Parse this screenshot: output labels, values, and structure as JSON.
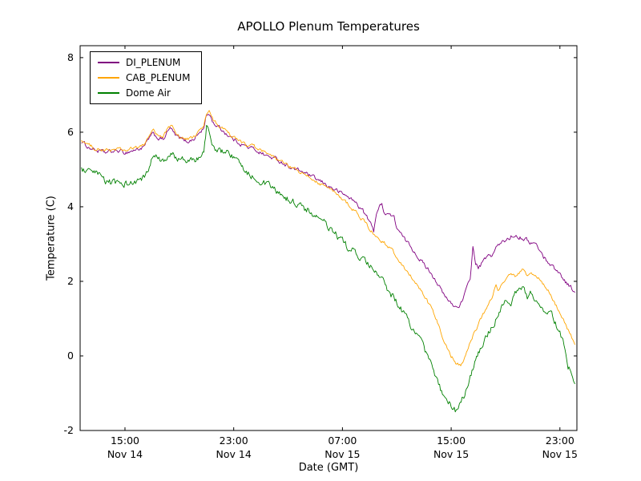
{
  "chart_data": {
    "type": "line",
    "title": "APOLLO Plenum Temperatures",
    "xlabel": "Date (GMT)",
    "ylabel": "Temperature (C)",
    "x_unit": "hours since Nov 14 00:00 GMT",
    "xlim": [
      11.7,
      48.25
    ],
    "ylim": [
      -2,
      8.32
    ],
    "grid": false,
    "legend_position": "upper left",
    "x_ticks": [
      {
        "value": 15,
        "time": "15:00",
        "date": "Nov 14"
      },
      {
        "value": 23,
        "time": "23:00",
        "date": "Nov 14"
      },
      {
        "value": 31,
        "time": "07:00",
        "date": "Nov 15"
      },
      {
        "value": 39,
        "time": "15:00",
        "date": "Nov 15"
      },
      {
        "value": 47,
        "time": "23:00",
        "date": "Nov 15"
      }
    ],
    "y_ticks": [
      {
        "value": -2,
        "label": "-2"
      },
      {
        "value": 0,
        "label": "0"
      },
      {
        "value": 2,
        "label": "2"
      },
      {
        "value": 4,
        "label": "4"
      },
      {
        "value": 6,
        "label": "6"
      },
      {
        "value": 8,
        "label": "8"
      }
    ],
    "series": [
      {
        "name": "DI_PLENUM",
        "color": "#800080",
        "noise": 0.035,
        "points": [
          [
            11.8,
            5.75
          ],
          [
            12.3,
            5.6
          ],
          [
            13,
            5.5
          ],
          [
            13.5,
            5.45
          ],
          [
            14.5,
            5.5
          ],
          [
            15,
            5.45
          ],
          [
            15.5,
            5.5
          ],
          [
            16,
            5.55
          ],
          [
            16.4,
            5.6
          ],
          [
            16.8,
            5.85
          ],
          [
            17.1,
            5.95
          ],
          [
            17.4,
            5.85
          ],
          [
            17.8,
            5.8
          ],
          [
            18.2,
            6.05
          ],
          [
            18.4,
            6.1
          ],
          [
            18.7,
            5.9
          ],
          [
            19,
            5.85
          ],
          [
            19.5,
            5.75
          ],
          [
            20,
            5.8
          ],
          [
            20.4,
            5.95
          ],
          [
            20.8,
            6.1
          ],
          [
            21,
            6.45
          ],
          [
            21.2,
            6.5
          ],
          [
            21.5,
            6.25
          ],
          [
            22,
            6.1
          ],
          [
            22.5,
            5.95
          ],
          [
            23,
            5.8
          ],
          [
            23.5,
            5.7
          ],
          [
            24,
            5.6
          ],
          [
            24.5,
            5.55
          ],
          [
            25,
            5.45
          ],
          [
            25.5,
            5.35
          ],
          [
            26,
            5.3
          ],
          [
            26.5,
            5.2
          ],
          [
            27,
            5.1
          ],
          [
            27.5,
            5.0
          ],
          [
            28,
            4.95
          ],
          [
            28.5,
            4.85
          ],
          [
            29,
            4.75
          ],
          [
            29.5,
            4.65
          ],
          [
            30,
            4.55
          ],
          [
            30.5,
            4.45
          ],
          [
            31,
            4.35
          ],
          [
            31.5,
            4.25
          ],
          [
            32,
            4.1
          ],
          [
            32.5,
            3.9
          ],
          [
            33,
            3.6
          ],
          [
            33.3,
            3.35
          ],
          [
            33.5,
            3.85
          ],
          [
            33.7,
            4.0
          ],
          [
            33.9,
            4.05
          ],
          [
            34.1,
            3.85
          ],
          [
            34.5,
            3.8
          ],
          [
            34.8,
            3.7
          ],
          [
            35,
            3.45
          ],
          [
            35.5,
            3.15
          ],
          [
            36,
            2.95
          ],
          [
            36.3,
            2.8
          ],
          [
            36.6,
            2.65
          ],
          [
            37,
            2.45
          ],
          [
            37.5,
            2.25
          ],
          [
            38,
            1.95
          ],
          [
            38.5,
            1.6
          ],
          [
            39,
            1.4
          ],
          [
            39.4,
            1.3
          ],
          [
            39.8,
            1.45
          ],
          [
            40.1,
            1.75
          ],
          [
            40.4,
            2.1
          ],
          [
            40.6,
            2.9
          ],
          [
            40.8,
            2.5
          ],
          [
            41,
            2.35
          ],
          [
            41.3,
            2.5
          ],
          [
            41.6,
            2.65
          ],
          [
            42,
            2.7
          ],
          [
            42.3,
            2.9
          ],
          [
            42.6,
            3.0
          ],
          [
            43,
            3.1
          ],
          [
            43.4,
            3.2
          ],
          [
            43.7,
            3.25
          ],
          [
            44,
            3.2
          ],
          [
            44.4,
            3.15
          ],
          [
            44.8,
            3.05
          ],
          [
            45.2,
            3.0
          ],
          [
            45.5,
            2.85
          ],
          [
            45.8,
            2.65
          ],
          [
            46.2,
            2.5
          ],
          [
            46.6,
            2.35
          ],
          [
            47,
            2.2
          ],
          [
            47.4,
            2.0
          ],
          [
            47.8,
            1.85
          ],
          [
            48.1,
            1.7
          ]
        ]
      },
      {
        "name": "CAB_PLENUM",
        "color": "#ffa500",
        "noise": 0.03,
        "points": [
          [
            11.8,
            5.8
          ],
          [
            12.3,
            5.65
          ],
          [
            13,
            5.55
          ],
          [
            13.5,
            5.5
          ],
          [
            14.5,
            5.55
          ],
          [
            15,
            5.5
          ],
          [
            15.5,
            5.55
          ],
          [
            16,
            5.6
          ],
          [
            16.4,
            5.65
          ],
          [
            16.8,
            5.95
          ],
          [
            17.1,
            6.05
          ],
          [
            17.4,
            5.9
          ],
          [
            17.8,
            5.85
          ],
          [
            18.2,
            6.15
          ],
          [
            18.4,
            6.2
          ],
          [
            18.7,
            6.0
          ],
          [
            19,
            5.9
          ],
          [
            19.5,
            5.8
          ],
          [
            20,
            5.85
          ],
          [
            20.4,
            6.0
          ],
          [
            20.8,
            6.15
          ],
          [
            21,
            6.5
          ],
          [
            21.2,
            6.55
          ],
          [
            21.5,
            6.3
          ],
          [
            22,
            6.15
          ],
          [
            22.5,
            6.0
          ],
          [
            23,
            5.85
          ],
          [
            23.5,
            5.75
          ],
          [
            24,
            5.65
          ],
          [
            24.5,
            5.6
          ],
          [
            25,
            5.5
          ],
          [
            25.5,
            5.4
          ],
          [
            26,
            5.3
          ],
          [
            26.5,
            5.2
          ],
          [
            27,
            5.1
          ],
          [
            27.5,
            5.0
          ],
          [
            28,
            4.9
          ],
          [
            28.5,
            4.8
          ],
          [
            29,
            4.7
          ],
          [
            29.5,
            4.6
          ],
          [
            30,
            4.5
          ],
          [
            30.5,
            4.35
          ],
          [
            31,
            4.2
          ],
          [
            31.5,
            4.05
          ],
          [
            32,
            3.85
          ],
          [
            32.5,
            3.65
          ],
          [
            33,
            3.4
          ],
          [
            33.5,
            3.2
          ],
          [
            34,
            3.05
          ],
          [
            34.5,
            2.9
          ],
          [
            35,
            2.65
          ],
          [
            35.5,
            2.4
          ],
          [
            36,
            2.15
          ],
          [
            36.5,
            1.9
          ],
          [
            37,
            1.6
          ],
          [
            37.5,
            1.3
          ],
          [
            38,
            0.9
          ],
          [
            38.5,
            0.4
          ],
          [
            39,
            0.0
          ],
          [
            39.4,
            -0.2
          ],
          [
            39.7,
            -0.25
          ],
          [
            40,
            -0.05
          ],
          [
            40.4,
            0.35
          ],
          [
            40.8,
            0.7
          ],
          [
            41.2,
            1.0
          ],
          [
            41.6,
            1.3
          ],
          [
            42,
            1.55
          ],
          [
            42.3,
            1.9
          ],
          [
            42.5,
            1.75
          ],
          [
            42.8,
            1.95
          ],
          [
            43.1,
            2.15
          ],
          [
            43.4,
            2.25
          ],
          [
            43.7,
            2.1
          ],
          [
            44,
            2.2
          ],
          [
            44.3,
            2.3
          ],
          [
            44.6,
            2.15
          ],
          [
            44.9,
            2.2
          ],
          [
            45.2,
            2.15
          ],
          [
            45.5,
            2.05
          ],
          [
            45.8,
            1.9
          ],
          [
            46.2,
            1.7
          ],
          [
            46.6,
            1.45
          ],
          [
            47,
            1.15
          ],
          [
            47.4,
            0.85
          ],
          [
            47.8,
            0.55
          ],
          [
            48.1,
            0.3
          ]
        ]
      },
      {
        "name": "Dome Air",
        "color": "#008000",
        "noise": 0.06,
        "points": [
          [
            11.8,
            5.0
          ],
          [
            12.3,
            4.9
          ],
          [
            13,
            4.85
          ],
          [
            13.5,
            4.7
          ],
          [
            14,
            4.65
          ],
          [
            14.5,
            4.6
          ],
          [
            15,
            4.65
          ],
          [
            15.5,
            4.6
          ],
          [
            16,
            4.7
          ],
          [
            16.5,
            4.8
          ],
          [
            16.8,
            5.0
          ],
          [
            17,
            5.3
          ],
          [
            17.2,
            5.35
          ],
          [
            17.5,
            5.25
          ],
          [
            18,
            5.2
          ],
          [
            18.3,
            5.35
          ],
          [
            18.6,
            5.4
          ],
          [
            19,
            5.3
          ],
          [
            19.5,
            5.2
          ],
          [
            20,
            5.25
          ],
          [
            20.5,
            5.3
          ],
          [
            20.8,
            5.5
          ],
          [
            21,
            6.15
          ],
          [
            21.1,
            6.2
          ],
          [
            21.4,
            5.6
          ],
          [
            21.7,
            5.45
          ],
          [
            22,
            5.45
          ],
          [
            22.4,
            5.55
          ],
          [
            22.7,
            5.4
          ],
          [
            23,
            5.3
          ],
          [
            23.5,
            5.1
          ],
          [
            24,
            4.95
          ],
          [
            24.5,
            4.8
          ],
          [
            25,
            4.7
          ],
          [
            25.5,
            4.55
          ],
          [
            26,
            4.45
          ],
          [
            26.5,
            4.3
          ],
          [
            27,
            4.2
          ],
          [
            27.5,
            4.1
          ],
          [
            28,
            4.0
          ],
          [
            28.5,
            3.9
          ],
          [
            29,
            3.75
          ],
          [
            29.5,
            3.6
          ],
          [
            30,
            3.45
          ],
          [
            30.5,
            3.25
          ],
          [
            31,
            3.05
          ],
          [
            31.5,
            2.9
          ],
          [
            32,
            2.75
          ],
          [
            32.5,
            2.55
          ],
          [
            33,
            2.4
          ],
          [
            33.5,
            2.2
          ],
          [
            34,
            1.95
          ],
          [
            34.5,
            1.7
          ],
          [
            35,
            1.45
          ],
          [
            35.5,
            1.15
          ],
          [
            36,
            0.85
          ],
          [
            36.5,
            0.5
          ],
          [
            37,
            0.2
          ],
          [
            37.5,
            -0.2
          ],
          [
            38,
            -0.7
          ],
          [
            38.5,
            -1.15
          ],
          [
            39,
            -1.35
          ],
          [
            39.3,
            -1.45
          ],
          [
            39.6,
            -1.35
          ],
          [
            40,
            -1.0
          ],
          [
            40.4,
            -0.55
          ],
          [
            40.8,
            -0.15
          ],
          [
            41.2,
            0.25
          ],
          [
            41.6,
            0.55
          ],
          [
            42,
            0.8
          ],
          [
            42.4,
            1.05
          ],
          [
            42.8,
            1.3
          ],
          [
            43.1,
            1.55
          ],
          [
            43.4,
            1.45
          ],
          [
            43.7,
            1.65
          ],
          [
            44,
            1.75
          ],
          [
            44.3,
            1.85
          ],
          [
            44.6,
            1.6
          ],
          [
            44.9,
            1.7
          ],
          [
            45.2,
            1.55
          ],
          [
            45.5,
            1.4
          ],
          [
            45.8,
            1.3
          ],
          [
            46.2,
            1.15
          ],
          [
            46.6,
            0.95
          ],
          [
            47,
            0.65
          ],
          [
            47.3,
            0.3
          ],
          [
            47.6,
            -0.25
          ],
          [
            48,
            -0.6
          ],
          [
            48.1,
            -0.75
          ]
        ]
      }
    ]
  }
}
